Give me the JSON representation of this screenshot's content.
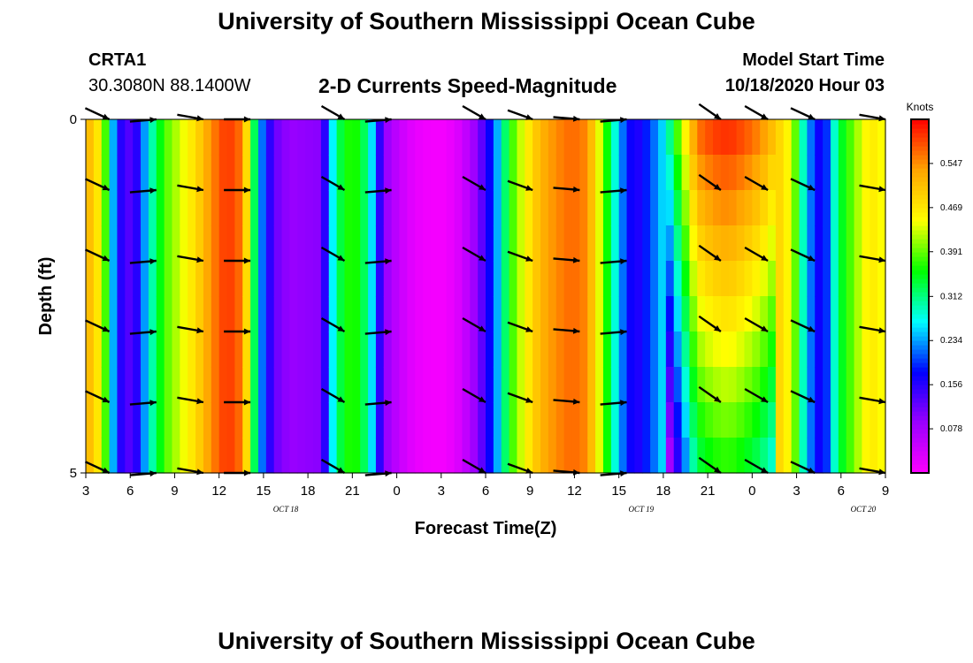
{
  "header": {
    "title": "University of Southern Mississippi Ocean Cube",
    "station": "CRTA1",
    "coords": "30.3080N 88.1400W",
    "chart_title": "2-D Currents Speed-Magnitude",
    "start_label": "Model Start Time",
    "start_value": "10/18/2020 Hour 03"
  },
  "footer": {
    "title": "University of Southern Mississippi Ocean Cube"
  },
  "colors": {
    "scale": [
      "#ff00ff",
      "#9b00ff",
      "#0000ff",
      "#00ffff",
      "#00ff00",
      "#ffff00",
      "#ffa500",
      "#ff0000"
    ]
  },
  "chart_data": {
    "type": "heatmap",
    "title": "2-D Currents Speed-Magnitude",
    "xlabel": "Forecast Time(Z)",
    "ylabel": "Depth (ft)",
    "ylim": [
      0,
      5
    ],
    "y_ticks": [
      "0",
      "5"
    ],
    "x_ticks": [
      "3",
      "6",
      "9",
      "12",
      "15",
      "18",
      "21",
      "0",
      "3",
      "6",
      "9",
      "12",
      "15",
      "18",
      "21",
      "0",
      "3",
      "6",
      "9"
    ],
    "date_labels": [
      {
        "label": "OCT 18",
        "tick_index": 4.5
      },
      {
        "label": "OCT 19",
        "tick_index": 12.5
      },
      {
        "label": "OCT 20",
        "tick_index": 17.5
      }
    ],
    "colorbar": {
      "unit": "Knots",
      "min": 0.0,
      "max": 0.625,
      "labels": [
        "0.547",
        "0.469",
        "0.391",
        "0.312",
        "0.234",
        "0.156",
        "0.078"
      ],
      "label_values": [
        0.547,
        0.469,
        0.391,
        0.312,
        0.234,
        0.156,
        0.078
      ]
    },
    "hours": [
      3,
      54
    ],
    "depth_levels": 5,
    "speed_profile": [
      [
        3,
        0.53
      ],
      [
        4,
        0.45
      ],
      [
        5,
        0.17
      ],
      [
        6,
        0.12
      ],
      [
        7,
        0.27
      ],
      [
        8,
        0.38
      ],
      [
        9,
        0.43
      ],
      [
        10,
        0.48
      ],
      [
        11,
        0.55
      ],
      [
        12,
        0.6
      ],
      [
        13,
        0.56
      ],
      [
        14,
        0.25
      ],
      [
        15,
        0.12
      ],
      [
        16,
        0.09
      ],
      [
        18,
        0.1
      ],
      [
        19,
        0.32
      ],
      [
        20,
        0.38
      ],
      [
        21,
        0.31
      ],
      [
        22,
        0.1
      ],
      [
        23,
        0.05
      ],
      [
        24,
        0.02
      ],
      [
        25,
        0.01
      ],
      [
        26,
        0.01
      ],
      [
        27,
        0.04
      ],
      [
        28,
        0.1
      ],
      [
        29,
        0.2
      ],
      [
        30,
        0.36
      ],
      [
        31,
        0.45
      ],
      [
        32,
        0.52
      ],
      [
        33,
        0.55
      ],
      [
        34,
        0.57
      ],
      [
        35,
        0.55
      ],
      [
        36,
        0.4
      ],
      [
        37,
        0.24
      ],
      [
        38,
        0.15
      ],
      [
        39,
        0.2
      ],
      [
        40,
        0.27
      ],
      [
        41,
        0.42
      ],
      [
        42,
        0.56
      ],
      [
        43,
        0.59
      ],
      [
        44,
        0.6
      ],
      [
        45,
        0.58
      ],
      [
        46,
        0.55
      ],
      [
        47,
        0.5
      ],
      [
        48,
        0.44
      ],
      [
        49,
        0.24
      ],
      [
        50,
        0.15
      ],
      [
        51,
        0.33
      ],
      [
        52,
        0.4
      ],
      [
        53,
        0.47
      ],
      [
        54,
        0.44
      ]
    ],
    "arrow_hours": [
      4.5,
      7.5,
      10.5,
      13.5,
      19.5,
      22.5,
      28.5,
      31.5,
      34.5,
      37.5,
      43.5,
      46.5,
      49.5,
      54
    ],
    "arrow_directions_deg": [
      155,
      185,
      170,
      180,
      150,
      185,
      150,
      160,
      175,
      185,
      145,
      150,
      155,
      170
    ]
  }
}
